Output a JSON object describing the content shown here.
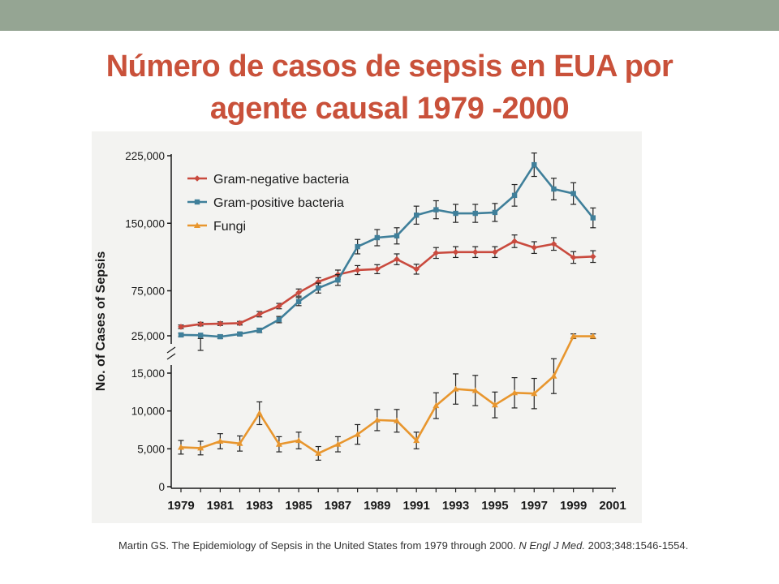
{
  "slide": {
    "title_line1": "Número de casos de sepsis en EUA por",
    "title_line2": "agente causal 1979 -2000",
    "citation": {
      "prefix": "Martin GS. The Epidemiology of Sepsis in the United States from 1979 through 2000.",
      "journal": "N Engl J Med.",
      "suffix": "2003;348:1546-1554."
    }
  },
  "colors": {
    "header_bar": "#95a593",
    "title": "#c9513a",
    "panel_bg": "#f3f3f1",
    "axis": "#1a1a1a"
  },
  "chart_data": {
    "type": "line",
    "title": "",
    "xlabel": "",
    "ylabel": "No. of Cases of Sepsis",
    "axis_break": "between 15,000 and 25,000",
    "x": [
      1979,
      1980,
      1981,
      1982,
      1983,
      1984,
      1985,
      1986,
      1987,
      1988,
      1989,
      1990,
      1991,
      1992,
      1993,
      1994,
      1995,
      1996,
      1997,
      1998,
      1999,
      2000
    ],
    "x_ticks": [
      1979,
      1981,
      1983,
      1985,
      1987,
      1989,
      1991,
      1993,
      1995,
      1997,
      1999,
      2001
    ],
    "x_tick_labels": [
      "1979",
      "1981",
      "1983",
      "1985",
      "1987",
      "1989",
      "1991",
      "1993",
      "1995",
      "1997",
      "1999",
      "2001"
    ],
    "xlim": [
      1979,
      2001
    ],
    "y_ticks": [
      0,
      5000,
      10000,
      15000,
      25000,
      75000,
      150000,
      225000
    ],
    "y_tick_labels": [
      "0",
      "5,000",
      "10,000",
      "15,000",
      "25,000",
      "75,000",
      "150,000",
      "225,000"
    ],
    "legend_position": "top-left",
    "series": [
      {
        "name": "Gram-negative bacteria",
        "color": "#c94a3e",
        "marker": "diamond",
        "values": [
          35000,
          38000,
          38500,
          39000,
          49000,
          58000,
          73000,
          85000,
          93000,
          98000,
          99000,
          110000,
          99000,
          117000,
          118000,
          118000,
          118000,
          130000,
          123000,
          127000,
          112000,
          113000
        ],
        "error": [
          2000,
          2000,
          2000,
          2000,
          3000,
          3000,
          4000,
          4500,
          5000,
          5000,
          5000,
          6000,
          5500,
          6000,
          6000,
          6000,
          6000,
          7000,
          6500,
          7000,
          6500,
          6500
        ]
      },
      {
        "name": "Gram-positive bacteria",
        "color": "#3f7f9a",
        "marker": "square",
        "values": [
          26000,
          20000,
          24000,
          27000,
          31000,
          43000,
          63000,
          78000,
          87000,
          124000,
          134000,
          136000,
          159000,
          165000,
          161000,
          161000,
          162000,
          181000,
          215000,
          188000,
          183000,
          156000
        ],
        "error": [
          2000,
          2000,
          2000,
          2000,
          2500,
          3500,
          4500,
          5500,
          6000,
          8000,
          9000,
          9000,
          10000,
          10000,
          10000,
          10000,
          10000,
          12000,
          13000,
          12000,
          12000,
          11000
        ]
      },
      {
        "name": "Fungi",
        "color": "#e8962e",
        "marker": "triangle",
        "values": [
          5200,
          5100,
          6000,
          5700,
          9700,
          5600,
          6100,
          4400,
          5600,
          6900,
          8800,
          8700,
          6100,
          10700,
          12900,
          12700,
          10800,
          12400,
          12300,
          14600,
          24500,
          24500
        ],
        "error": [
          900,
          900,
          1000,
          1000,
          1500,
          1000,
          1100,
          900,
          1000,
          1300,
          1400,
          1500,
          1100,
          1700,
          2000,
          2000,
          1700,
          2000,
          2000,
          2300,
          2600,
          2600
        ]
      }
    ]
  }
}
